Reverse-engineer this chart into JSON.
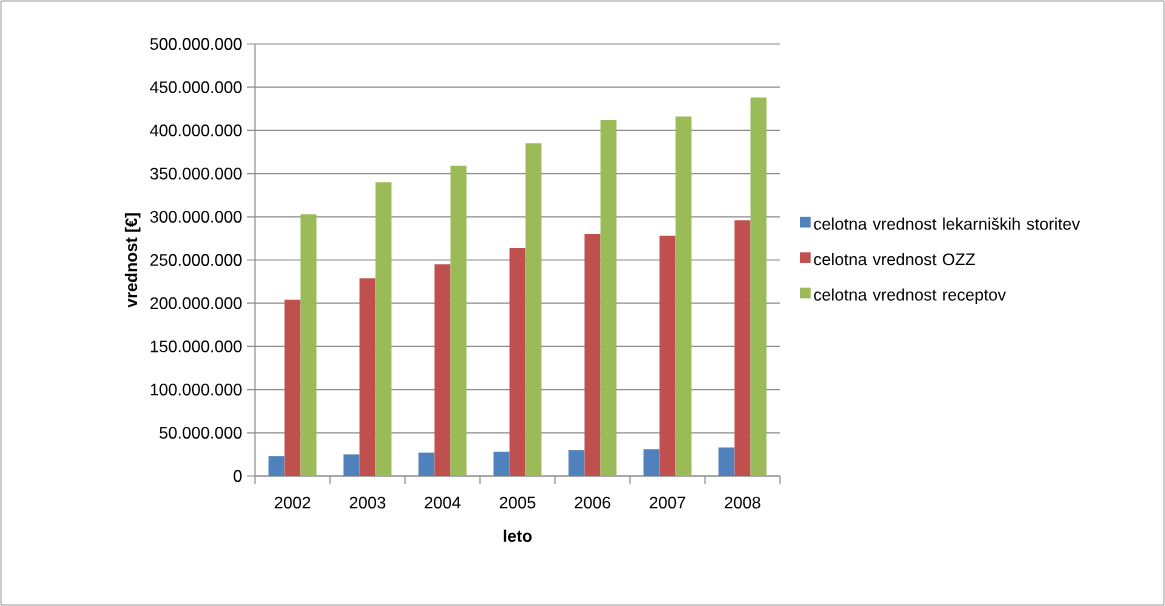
{
  "chart_data": {
    "type": "bar",
    "xlabel": "leto",
    "ylabel": "vrednost [€]",
    "categories": [
      "2002",
      "2003",
      "2004",
      "2005",
      "2006",
      "2007",
      "2008"
    ],
    "series": [
      {
        "name": "celotna vrednost lekarniških storitev",
        "color": "#4f81bd",
        "values": [
          23000000,
          25000000,
          27000000,
          28000000,
          30000000,
          31000000,
          33000000
        ]
      },
      {
        "name": "celotna vrednost OZZ",
        "color": "#c0504d",
        "values": [
          204000000,
          229000000,
          245000000,
          264000000,
          280000000,
          278000000,
          296000000
        ]
      },
      {
        "name": "celotna vrednost receptov",
        "color": "#9bbb59",
        "values": [
          303000000,
          340000000,
          359000000,
          385000000,
          412000000,
          416000000,
          438000000
        ]
      }
    ],
    "ylim": [
      0,
      500000000
    ],
    "yticks": [
      {
        "value": 0,
        "label": "0"
      },
      {
        "value": 50000000,
        "label": "50.000.000"
      },
      {
        "value": 100000000,
        "label": "100.000.000"
      },
      {
        "value": 150000000,
        "label": "150.000.000"
      },
      {
        "value": 200000000,
        "label": "200.000.000"
      },
      {
        "value": 250000000,
        "label": "250.000.000"
      },
      {
        "value": 300000000,
        "label": "300.000.000"
      },
      {
        "value": 350000000,
        "label": "350.000.000"
      },
      {
        "value": 400000000,
        "label": "400.000.000"
      },
      {
        "value": 450000000,
        "label": "450.000.000"
      },
      {
        "value": 500000000,
        "label": "500.000.000"
      }
    ],
    "grid": "y",
    "legend": "right"
  }
}
